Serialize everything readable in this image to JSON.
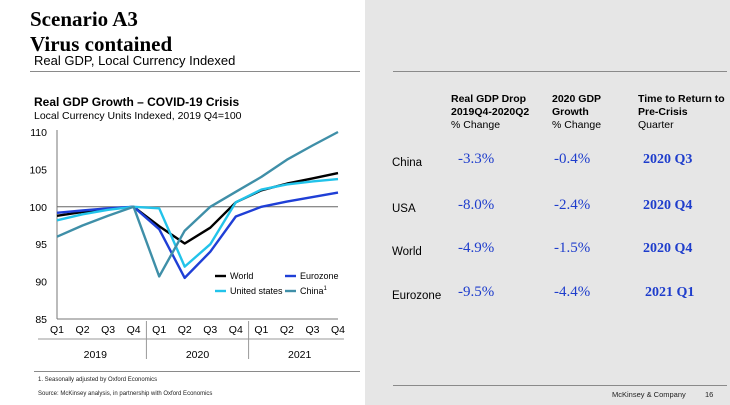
{
  "slide": {
    "title_line1": "Scenario A3",
    "title_line2": "Virus contained",
    "subtitle": "Real GDP, Local Currency Indexed",
    "footnote": "1.   Seasonally adjusted by Oxford Economics",
    "source": "Source: McKinsey analysis, in partnership with Oxford Economics",
    "company": "McKinsey & Company",
    "page_number": "16"
  },
  "chart_data": {
    "type": "line",
    "title": "Real GDP Growth – COVID-19 Crisis",
    "subtitle": "Local Currency Units Indexed, 2019 Q4=100",
    "x": [
      "Q1",
      "Q2",
      "Q3",
      "Q4",
      "Q1",
      "Q2",
      "Q3",
      "Q4",
      "Q1",
      "Q2",
      "Q3",
      "Q4"
    ],
    "years": [
      "2019",
      "2020",
      "2021"
    ],
    "ylim": [
      85,
      110
    ],
    "yticks": [
      85,
      90,
      95,
      100,
      105,
      110
    ],
    "reference_line": 100,
    "legend_placement": "lower-right",
    "series": [
      {
        "name": "World",
        "color": "#000000",
        "values": [
          98.8,
          99.3,
          99.7,
          100,
          97.4,
          95.1,
          97.2,
          100.6,
          102.2,
          103.1,
          103.8,
          104.5
        ]
      },
      {
        "name": "Eurozone",
        "color": "#1f3fd6",
        "values": [
          99.2,
          99.5,
          99.8,
          100,
          97.0,
          90.5,
          94.0,
          98.7,
          100.0,
          100.7,
          101.3,
          101.9
        ]
      },
      {
        "name": "United states",
        "color": "#22c3ea",
        "values": [
          98.2,
          99.0,
          99.6,
          100,
          99.8,
          92.0,
          95.0,
          100.6,
          102.3,
          103.0,
          103.4,
          103.7
        ]
      },
      {
        "name": "China",
        "color": "#3f8fa8",
        "superscript": "1",
        "values": [
          96.0,
          97.5,
          98.8,
          100,
          90.7,
          96.8,
          100.0,
          102.0,
          104.0,
          106.3,
          108.2,
          110.0
        ]
      }
    ]
  },
  "table": {
    "headers": [
      {
        "line1": "Real GDP Drop",
        "line2": "2019Q4-2020Q2",
        "line3": "% Change"
      },
      {
        "line1": "2020 GDP",
        "line2": "Growth",
        "line3": "% Change"
      },
      {
        "line1": "Time to Return to",
        "line2": "Pre-Crisis",
        "line3": "Quarter"
      }
    ],
    "rows": [
      {
        "label": "China",
        "drop": "-3.3%",
        "growth": "-0.4%",
        "return": "2020 Q3"
      },
      {
        "label": "USA",
        "drop": "-8.0%",
        "growth": "-2.4%",
        "return": "2020 Q4"
      },
      {
        "label": "World",
        "drop": "-4.9%",
        "growth": "-1.5%",
        "return": "2020 Q4"
      },
      {
        "label": "Eurozone",
        "drop": "-9.5%",
        "growth": "-4.4%",
        "return": "2021 Q1"
      }
    ]
  }
}
